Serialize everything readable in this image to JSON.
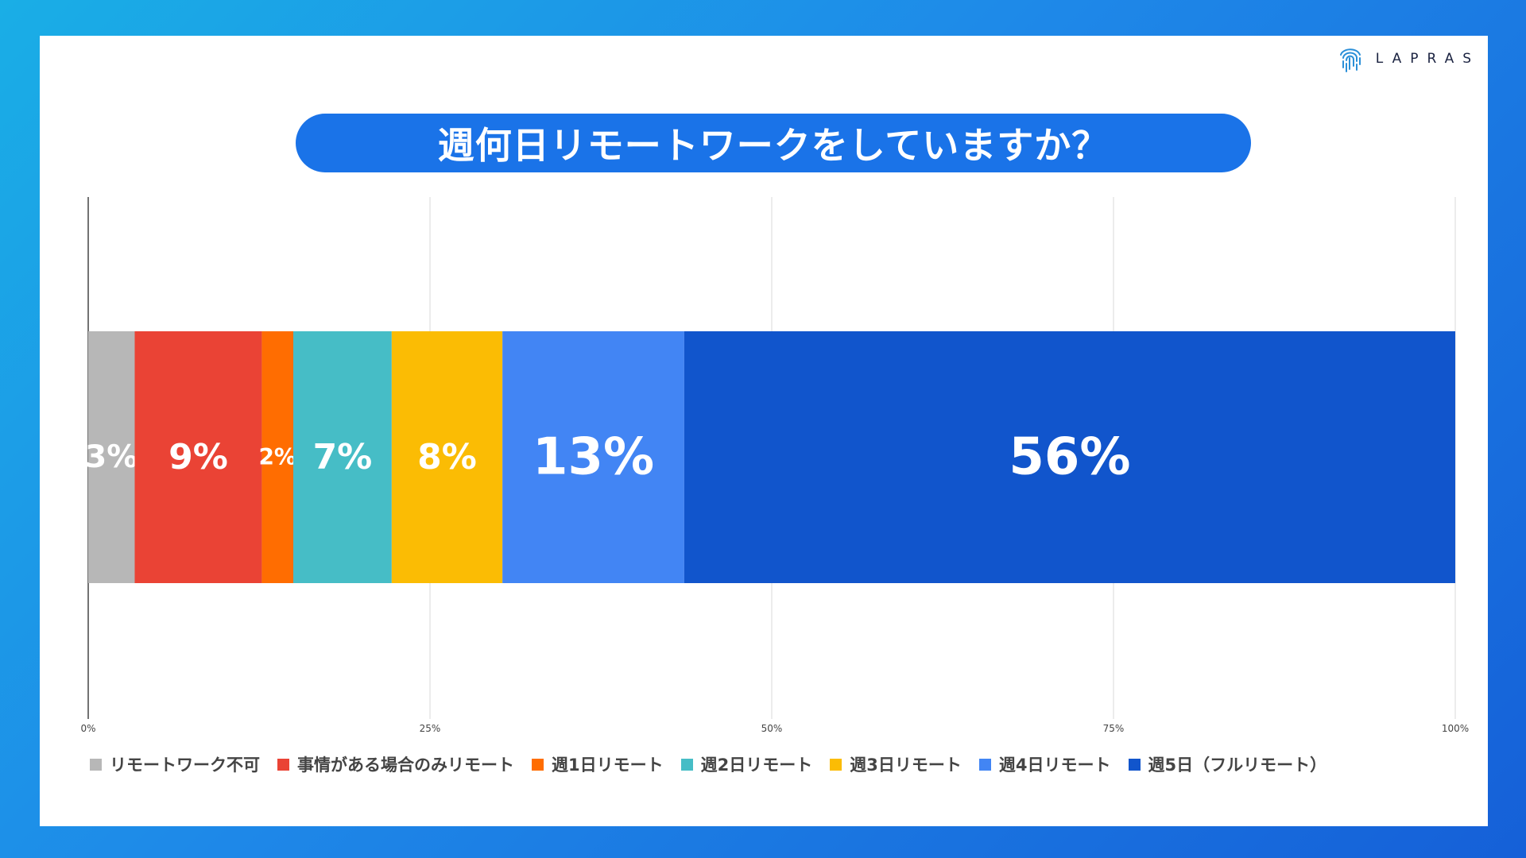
{
  "brand": {
    "name": "LAPRAS"
  },
  "chart_data": {
    "type": "bar",
    "orientation": "horizontal",
    "stacked": "percent",
    "title": "週何日リモートワークをしていますか？",
    "xlim": [
      0,
      100
    ],
    "x_ticks": [
      "0%",
      "25%",
      "50%",
      "75%",
      "100%"
    ],
    "grid": true,
    "legend_position": "bottom",
    "series": [
      {
        "name": "リモートワーク不可",
        "value": 3.4,
        "label": "3%",
        "color": "#b7b7b7"
      },
      {
        "name": "事情がある場合のみリモート",
        "value": 9.3,
        "label": "9%",
        "color": "#ea4335"
      },
      {
        "name": "週1日リモート",
        "value": 2.3,
        "label": "2%",
        "color": "#ff6d01"
      },
      {
        "name": "週2日リモート",
        "value": 7.2,
        "label": "7%",
        "color": "#46bdc6"
      },
      {
        "name": "週3日リモート",
        "value": 8.1,
        "label": "8%",
        "color": "#fbbc04"
      },
      {
        "name": "週4日リモート",
        "value": 13.3,
        "label": "13%",
        "color": "#4285f4"
      },
      {
        "name": "週5日（フルリモート）",
        "value": 56.4,
        "label": "56%",
        "color": "#1155cc"
      }
    ]
  }
}
